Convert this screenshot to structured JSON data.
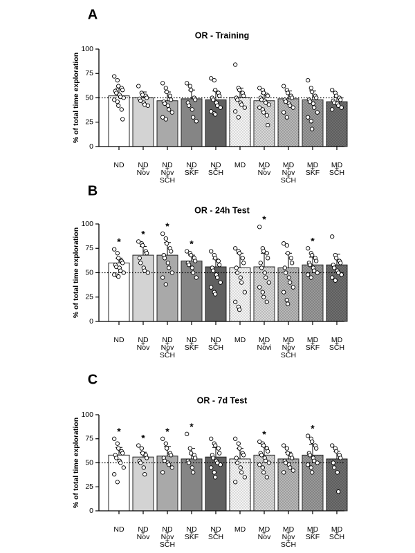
{
  "chart_data": [
    {
      "type": "bar",
      "panel_letter": "A",
      "title": "OR - Training",
      "ylabel": "% of total time exploration",
      "ylim": [
        0,
        100
      ],
      "yticks": [
        "0",
        "25",
        "50",
        "75",
        "100"
      ],
      "reference_line": 50,
      "categories": [
        "ND",
        "ND + Nov",
        "ND + Nov + SCH",
        "ND + SKF",
        "ND + SCH",
        "MD",
        "MD + Nov",
        "MD + Nov + SCH",
        "MD + SKF",
        "MD + SCH"
      ],
      "category_label_lines": [
        [
          "ND"
        ],
        [
          "ND",
          "Nov"
        ],
        [
          "ND",
          "Nov",
          "SCH"
        ],
        [
          "ND",
          "SKF"
        ],
        [
          "ND",
          "SCH"
        ],
        [
          "MD"
        ],
        [
          "MD",
          "Nov"
        ],
        [
          "MD",
          "Nov",
          "SCH"
        ],
        [
          "MD",
          "SKF"
        ],
        [
          "MD",
          "SCH"
        ]
      ],
      "values": [
        52,
        50,
        47,
        49,
        48,
        50,
        47,
        49,
        48,
        46
      ],
      "errors": [
        8,
        6,
        9,
        9,
        9,
        10,
        7,
        8,
        9,
        5
      ],
      "significant": [
        false,
        false,
        false,
        false,
        false,
        false,
        false,
        false,
        false,
        false
      ],
      "points": [
        [
          72,
          68,
          62,
          60,
          58,
          57,
          55,
          53,
          51,
          50,
          48,
          46,
          42,
          38,
          28
        ],
        [
          62,
          55,
          53,
          52,
          50,
          49,
          47,
          45,
          43,
          42
        ],
        [
          65,
          60,
          56,
          52,
          48,
          46,
          44,
          42,
          38,
          35,
          30,
          28
        ],
        [
          65,
          62,
          58,
          50,
          48,
          45,
          42,
          38,
          30,
          26
        ],
        [
          70,
          68,
          58,
          55,
          52,
          50,
          48,
          45,
          42,
          40,
          36,
          34,
          33
        ],
        [
          84,
          60,
          58,
          55,
          52,
          50,
          48,
          45,
          43,
          40,
          36,
          30
        ],
        [
          60,
          58,
          55,
          53,
          52,
          50,
          48,
          47,
          45,
          43,
          40,
          38,
          35,
          32,
          22
        ],
        [
          62,
          58,
          55,
          52,
          50,
          48,
          46,
          44,
          42,
          40,
          35,
          30
        ],
        [
          68,
          60,
          56,
          52,
          50,
          48,
          46,
          44,
          40,
          35,
          30,
          26,
          18
        ],
        [
          58,
          55,
          52,
          50,
          48,
          47,
          45,
          44,
          42,
          40,
          38
        ]
      ]
    },
    {
      "type": "bar",
      "panel_letter": "B",
      "title": "OR - 24h Test",
      "ylabel": "% of total time exploration",
      "ylim": [
        0,
        100
      ],
      "yticks": [
        "0",
        "25",
        "50",
        "75",
        "100"
      ],
      "reference_line": 50,
      "categories": [
        "ND",
        "ND + Nov",
        "ND + Nov + SCH",
        "ND + SKF",
        "ND + SCH",
        "MD",
        "MD + Novi",
        "MD + Nov + SCH",
        "MD + SKF",
        "MD + SCH"
      ],
      "category_label_lines": [
        [
          "ND"
        ],
        [
          "ND",
          "Nov"
        ],
        [
          "ND",
          "Nov",
          "SCH"
        ],
        [
          "ND",
          "SKF"
        ],
        [
          "ND",
          "SCH"
        ],
        [
          "MD"
        ],
        [
          "MD",
          "Novi"
        ],
        [
          "MD",
          "Nov",
          "SCH"
        ],
        [
          "MD",
          "SKF"
        ],
        [
          "MD",
          "SCH"
        ]
      ],
      "values": [
        60,
        68,
        68,
        62,
        56,
        55,
        56,
        55,
        58,
        58
      ],
      "errors": [
        5,
        9,
        13,
        6,
        8,
        15,
        14,
        15,
        8,
        11
      ],
      "significant": [
        true,
        true,
        true,
        true,
        false,
        false,
        true,
        false,
        true,
        false
      ],
      "points": [
        [
          74,
          70,
          65,
          62,
          60,
          58,
          56,
          55,
          52,
          50,
          48,
          47,
          46
        ],
        [
          82,
          80,
          78,
          72,
          70,
          65,
          60,
          55,
          52,
          50
        ],
        [
          90,
          85,
          80,
          75,
          72,
          68,
          65,
          60,
          55,
          50,
          45,
          38
        ],
        [
          72,
          70,
          68,
          65,
          62,
          60,
          58,
          55,
          50,
          45
        ],
        [
          72,
          68,
          65,
          62,
          58,
          55,
          52,
          48,
          45,
          40,
          35,
          30,
          28
        ],
        [
          75,
          72,
          70,
          65,
          60,
          55,
          50,
          45,
          40,
          30,
          20,
          15,
          12
        ],
        [
          97,
          75,
          72,
          70,
          65,
          60,
          55,
          50,
          45,
          40,
          35,
          30,
          25,
          20
        ],
        [
          80,
          78,
          70,
          65,
          60,
          55,
          50,
          45,
          40,
          35,
          30,
          22,
          18
        ],
        [
          75,
          70,
          68,
          65,
          62,
          60,
          58,
          55,
          52,
          50,
          48,
          45
        ],
        [
          87,
          68,
          65,
          62,
          60,
          58,
          55,
          52,
          50,
          48,
          45,
          42
        ]
      ]
    },
    {
      "type": "bar",
      "panel_letter": "C",
      "title": "OR - 7d Test",
      "ylabel": "% of total time exploration",
      "ylim": [
        0,
        100
      ],
      "yticks": [
        "0",
        "25",
        "50",
        "75",
        "100"
      ],
      "reference_line": 50,
      "categories": [
        "ND",
        "ND + Nov",
        "ND + Nov + SCH",
        "ND + SKF",
        "ND + SCH",
        "MD",
        "MD + Nov",
        "MD + Nov + SCH",
        "MD + SKF",
        "MD + SCH"
      ],
      "category_label_lines": [
        [
          "ND"
        ],
        [
          "ND",
          "Nov"
        ],
        [
          "ND",
          "Nov",
          "SCH"
        ],
        [
          "ND",
          "SKF"
        ],
        [
          "ND",
          "SCH"
        ],
        [
          "MD"
        ],
        [
          "MD",
          "Nov"
        ],
        [
          "MD",
          "Nov",
          "SCH"
        ],
        [
          "MD",
          "SKF"
        ],
        [
          "MD",
          "SCH"
        ]
      ],
      "values": [
        58,
        56,
        57,
        54,
        56,
        54,
        58,
        54,
        58,
        54
      ],
      "errors": [
        8,
        5,
        10,
        11,
        10,
        11,
        9,
        7,
        11,
        8
      ],
      "significant": [
        true,
        true,
        true,
        true,
        false,
        false,
        true,
        false,
        true,
        false
      ],
      "points": [
        [
          75,
          70,
          65,
          62,
          60,
          58,
          55,
          52,
          50,
          45,
          38,
          30
        ],
        [
          68,
          65,
          60,
          58,
          55,
          52,
          50,
          45,
          38
        ],
        [
          75,
          70,
          65,
          60,
          58,
          55,
          52,
          50,
          48,
          45,
          40
        ],
        [
          80,
          65,
          60,
          58,
          55,
          52,
          50,
          45,
          40
        ],
        [
          75,
          70,
          68,
          65,
          60,
          58,
          55,
          52,
          50,
          48,
          45,
          40,
          35
        ],
        [
          75,
          70,
          65,
          60,
          58,
          55,
          50,
          45,
          40,
          35,
          30
        ],
        [
          72,
          70,
          68,
          65,
          62,
          60,
          58,
          55,
          52,
          50,
          48,
          45,
          40,
          35
        ],
        [
          68,
          65,
          60,
          58,
          55,
          52,
          50,
          48,
          45,
          42,
          40
        ],
        [
          78,
          75,
          72,
          68,
          65,
          60,
          58,
          55,
          52,
          50,
          48,
          45,
          40
        ],
        [
          68,
          65,
          62,
          58,
          55,
          50,
          45,
          40,
          20
        ]
      ]
    }
  ]
}
